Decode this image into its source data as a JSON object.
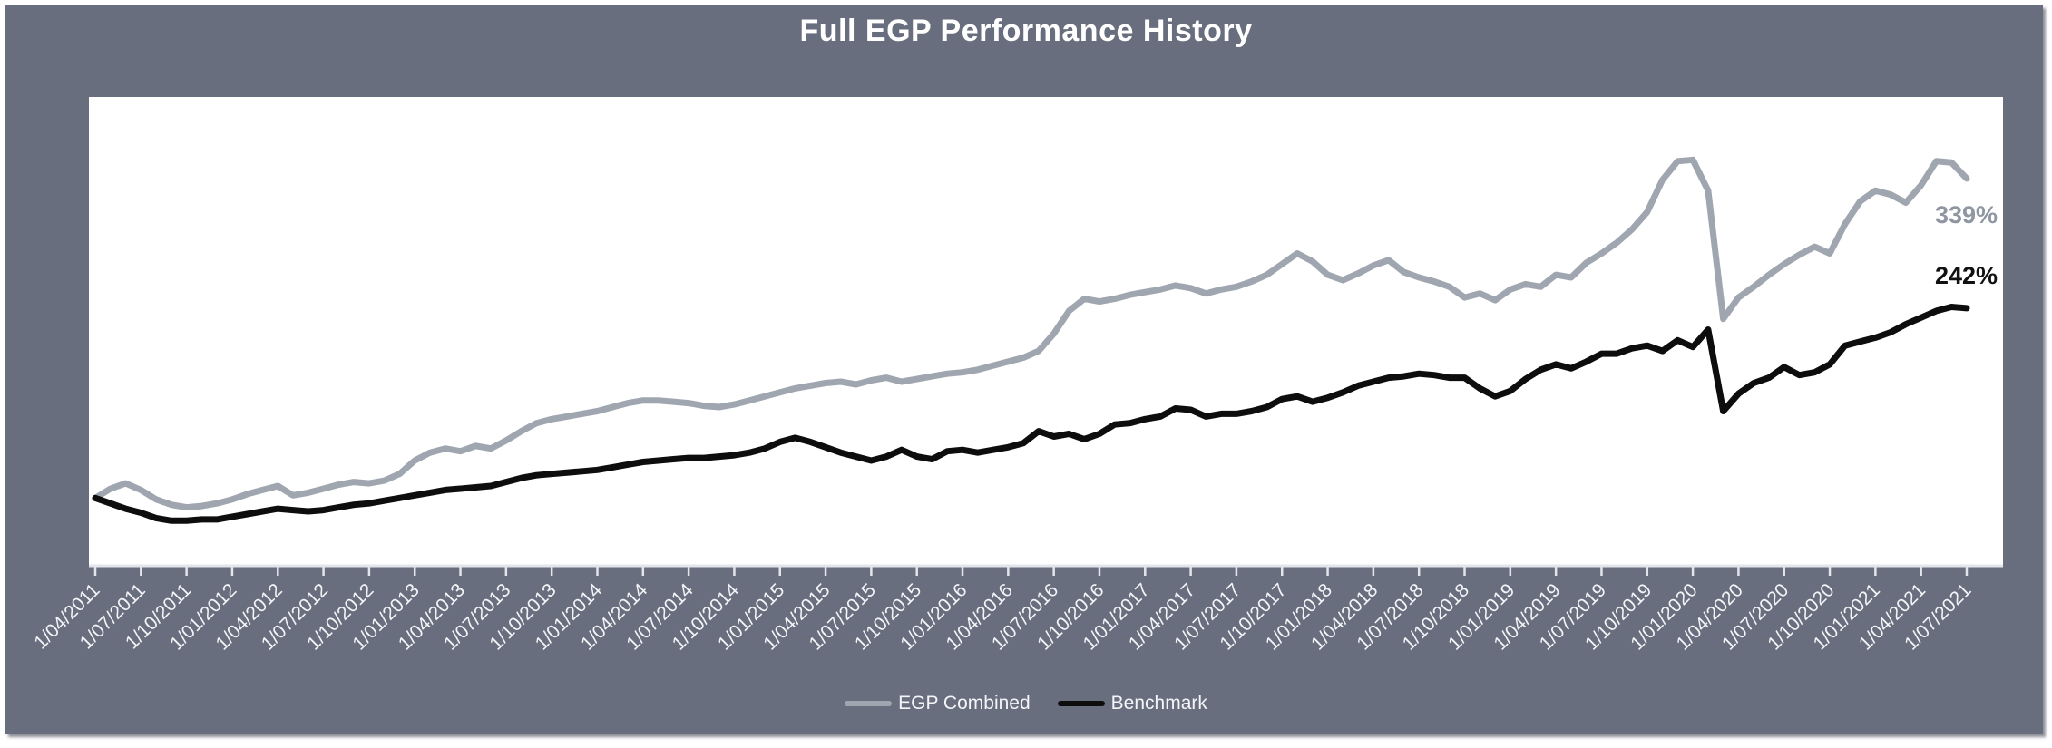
{
  "title": "Full EGP Performance History",
  "end_labels": [
    {
      "text": "339%",
      "color": "#8f96a2"
    },
    {
      "text": "242%",
      "color": "#111111"
    }
  ],
  "legend": {
    "items": [
      {
        "label": "EGP Combined",
        "color": "#a0a6b0"
      },
      {
        "label": "Benchmark",
        "color": "#0d0d0d"
      }
    ]
  },
  "colors": {
    "panel_background": "#696e7e",
    "plot_background": "#ffffff",
    "axis_and_ticks": "#e2e5ec",
    "tick_label_text": "#f2f4f7",
    "title_text": "#ffffff"
  },
  "chart_data": {
    "type": "line",
    "title": "Full EGP Performance History",
    "x_interval": "monthly",
    "x_start": "1/04/2011",
    "x_end": "1/07/2021",
    "tick_labels": [
      "1/04/2011",
      "1/07/2011",
      "1/10/2011",
      "1/01/2012",
      "1/04/2012",
      "1/07/2012",
      "1/10/2012",
      "1/01/2013",
      "1/04/2013",
      "1/07/2013",
      "1/10/2013",
      "1/01/2014",
      "1/04/2014",
      "1/07/2014",
      "1/10/2014",
      "1/01/2015",
      "1/04/2015",
      "1/07/2015",
      "1/10/2015",
      "1/01/2016",
      "1/04/2016",
      "1/07/2016",
      "1/10/2016",
      "1/01/2017",
      "1/04/2017",
      "1/07/2017",
      "1/10/2017",
      "1/01/2018",
      "1/04/2018",
      "1/07/2018",
      "1/10/2018",
      "1/01/2019",
      "1/04/2019",
      "1/07/2019",
      "1/10/2019",
      "1/01/2020",
      "1/04/2020",
      "1/07/2020",
      "1/10/2020",
      "1/01/2021",
      "1/04/2021",
      "1/07/2021"
    ],
    "months_per_tick": 3,
    "ylim": [
      50,
      400
    ],
    "y_axis_visible": false,
    "grid": false,
    "legend_position": "bottom",
    "series": [
      {
        "name": "EGP Combined",
        "color": "#a0a6b0",
        "end_label": "339%",
        "values": [
          100,
          107,
          111,
          106,
          99,
          95,
          93,
          94,
          96,
          99,
          103,
          106,
          109,
          102,
          104,
          107,
          110,
          112,
          111,
          113,
          118,
          128,
          134,
          137,
          135,
          139,
          137,
          143,
          150,
          156,
          159,
          161,
          163,
          165,
          168,
          171,
          173,
          173,
          172,
          171,
          169,
          168,
          170,
          173,
          176,
          179,
          182,
          184,
          186,
          187,
          185,
          188,
          190,
          187,
          189,
          191,
          193,
          194,
          196,
          199,
          202,
          205,
          210,
          223,
          240,
          249,
          247,
          249,
          252,
          254,
          256,
          259,
          257,
          253,
          256,
          258,
          262,
          267,
          275,
          283,
          277,
          267,
          263,
          268,
          274,
          278,
          269,
          265,
          262,
          258,
          250,
          253,
          248,
          256,
          260,
          258,
          267,
          265,
          276,
          283,
          291,
          301,
          314,
          338,
          352,
          353,
          330,
          234,
          250,
          258,
          267,
          275,
          282,
          288,
          283,
          305,
          322,
          330,
          327,
          321,
          334,
          352,
          351,
          339
        ]
      },
      {
        "name": "Benchmark",
        "color": "#0d0d0d",
        "end_label": "242%",
        "values": [
          100,
          96,
          92,
          89,
          85,
          83,
          83,
          84,
          84,
          86,
          88,
          90,
          92,
          91,
          90,
          91,
          93,
          95,
          96,
          98,
          100,
          102,
          104,
          106,
          107,
          108,
          109,
          112,
          115,
          117,
          118,
          119,
          120,
          121,
          123,
          125,
          127,
          128,
          129,
          130,
          130,
          131,
          132,
          134,
          137,
          142,
          145,
          142,
          138,
          134,
          131,
          128,
          131,
          136,
          131,
          129,
          135,
          136,
          134,
          136,
          138,
          141,
          150,
          146,
          148,
          144,
          148,
          155,
          156,
          159,
          161,
          167,
          166,
          161,
          163,
          163,
          165,
          168,
          174,
          176,
          172,
          175,
          179,
          184,
          187,
          190,
          191,
          193,
          192,
          190,
          190,
          182,
          176,
          180,
          189,
          196,
          200,
          197,
          202,
          208,
          208,
          212,
          214,
          210,
          218,
          213,
          226,
          165,
          178,
          186,
          190,
          198,
          192,
          194,
          200,
          214,
          217,
          220,
          224,
          230,
          235,
          240,
          243,
          242
        ]
      }
    ]
  }
}
